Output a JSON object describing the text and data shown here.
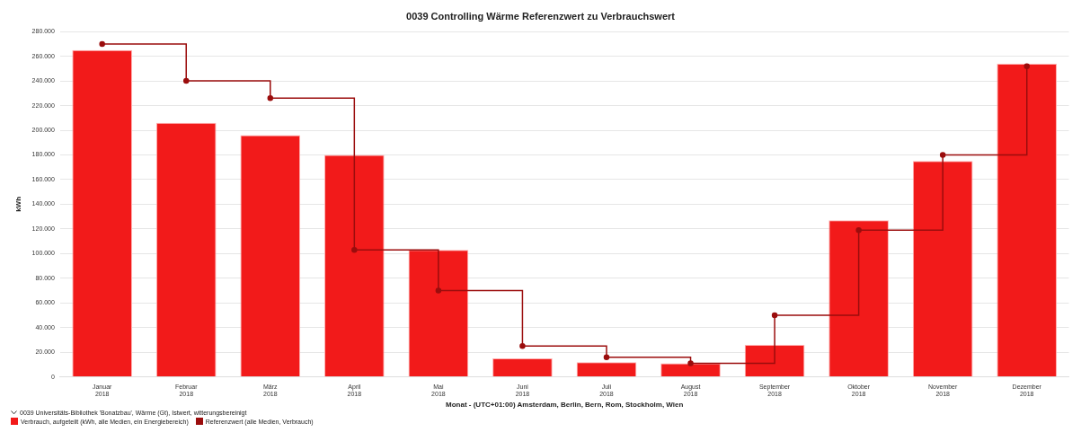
{
  "chart_data": {
    "type": "bar",
    "title": "0039 Controlling Wärme Referenzwert zu Verbrauchswert",
    "xlabel": "Monat - (UTC+01:00) Amsterdam, Berlin, Bern, Rom, Stockholm, Wien",
    "ylabel": "kWh",
    "legend_title": "0039 Universitäts-Bibliothek 'Bonatzbau', Wärme (Gt), Istwert, witterungsbereinigt",
    "categories": [
      "Januar 2018",
      "Februar 2018",
      "März 2018",
      "April 2018",
      "Mai 2018",
      "Juni 2018",
      "Juli 2018",
      "August 2018",
      "September 2018",
      "Oktober 2018",
      "November 2018",
      "Dezember 2018"
    ],
    "series": [
      {
        "name": "Verbrauch, aufgeteilt (kWh, alle Medien, ein Energiebereich)",
        "color": "#f21a1a",
        "values": [
          265000,
          206000,
          196000,
          180000,
          103000,
          15000,
          12000,
          11000,
          26000,
          127000,
          175000,
          254000
        ]
      },
      {
        "name": "Referenzwert (alle Medien, Verbrauch)",
        "type": "step",
        "color": "#9b0d0d",
        "values": [
          270000,
          240000,
          226000,
          103000,
          70000,
          25000,
          16000,
          11000,
          50000,
          119000,
          180000,
          252000
        ]
      }
    ],
    "ylim": [
      0,
      280000
    ],
    "yticks": [
      {
        "value": 0,
        "label": "0"
      },
      {
        "value": 20000,
        "label": "20.000"
      },
      {
        "value": 40000,
        "label": "40.000"
      },
      {
        "value": 60000,
        "label": "60.000"
      },
      {
        "value": 80000,
        "label": "80.000"
      },
      {
        "value": 100000,
        "label": "100.000"
      },
      {
        "value": 120000,
        "label": "120.000"
      },
      {
        "value": 140000,
        "label": "140.000"
      },
      {
        "value": 160000,
        "label": "160.000"
      },
      {
        "value": 180000,
        "label": "180.000"
      },
      {
        "value": 200000,
        "label": "200.000"
      },
      {
        "value": 220000,
        "label": "220.000"
      },
      {
        "value": 240000,
        "label": "240.000"
      },
      {
        "value": 260000,
        "label": "260.000"
      },
      {
        "value": 280000,
        "label": "280.000"
      }
    ],
    "grid": "y",
    "legend": "bottom left",
    "marker": "circle"
  }
}
